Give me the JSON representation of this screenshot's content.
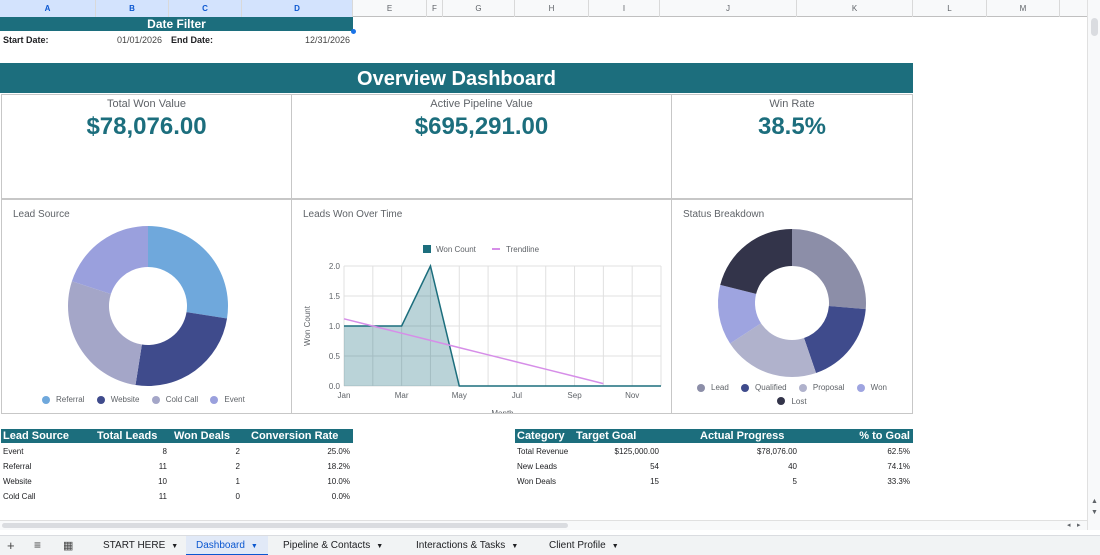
{
  "columns": [
    "A",
    "B",
    "C",
    "D",
    "E",
    "F",
    "G",
    "H",
    "I",
    "J",
    "K",
    "L",
    "M"
  ],
  "date_filter": {
    "title": "Date Filter",
    "start_label": "Start Date:",
    "start_value": "01/01/2026",
    "end_label": "End Date:",
    "end_value": "12/31/2026"
  },
  "dashboard_title": "Overview Dashboard",
  "kpis": {
    "won": {
      "label": "Total Won Value",
      "value": "$78,076.00"
    },
    "pipeline": {
      "label": "Active Pipeline Value",
      "value": "$695,291.00"
    },
    "winrate": {
      "label": "Win Rate",
      "value": "38.5%"
    }
  },
  "colors": {
    "teal": "#1c6e7d",
    "referral": "#6fa8dc",
    "website": "#3f4b8c",
    "cold_call": "#a4a6c8",
    "event": "#9aa0dd",
    "lead": "#8c8ea8",
    "qualified": "#3f4b8c",
    "proposal": "#b0b2cc",
    "status_won": "#9ea4e0",
    "lost": "#33344a",
    "won_count": "#1c6e7d",
    "trendline": "#d68ee8"
  },
  "chart_data": [
    {
      "type": "pie",
      "title": "Lead Source",
      "categories": [
        "Referral",
        "Website",
        "Cold Call",
        "Event"
      ],
      "values": [
        11,
        10,
        11,
        8
      ]
    },
    {
      "type": "area",
      "title": "Leads Won Over Time",
      "x": [
        "Jan",
        "Feb",
        "Mar",
        "Apr",
        "May",
        "Jun",
        "Jul",
        "Aug",
        "Sep",
        "Oct",
        "Nov",
        "Dec"
      ],
      "series": [
        {
          "name": "Won Count",
          "values": [
            1,
            1,
            1,
            2,
            0,
            0,
            0,
            0,
            0,
            0,
            0,
            0
          ]
        },
        {
          "name": "Trendline",
          "values": [
            1.12,
            1.0,
            0.88,
            0.76,
            0.64,
            0.52,
            0.4,
            0.28,
            0.16,
            0.04,
            null,
            null
          ]
        }
      ],
      "tick_labels_x": [
        "Jan",
        "Mar",
        "May",
        "Jul",
        "Sep",
        "Nov"
      ],
      "tick_labels_y": [
        "0.0",
        "0.5",
        "1.0",
        "1.5",
        "2.0"
      ],
      "xlabel": "Month",
      "ylabel": "Won Count",
      "ylim": [
        0,
        2
      ],
      "grid": true,
      "legend": "top"
    },
    {
      "type": "pie",
      "title": "Status Breakdown",
      "categories": [
        "Lead",
        "Qualified",
        "Proposal",
        "Won",
        "Lost"
      ],
      "values": [
        10,
        7,
        8,
        5,
        8
      ]
    }
  ],
  "lead_table": {
    "headers": [
      "Lead Source",
      "Total Leads",
      "Won Deals",
      "Conversion Rate"
    ],
    "rows": [
      [
        "Event",
        "8",
        "2",
        "25.0%"
      ],
      [
        "Referral",
        "11",
        "2",
        "18.2%"
      ],
      [
        "Website",
        "10",
        "1",
        "10.0%"
      ],
      [
        "Cold Call",
        "11",
        "0",
        "0.0%"
      ]
    ]
  },
  "goal_table": {
    "headers": [
      "Category",
      "Target Goal",
      "Actual Progress",
      "% to Goal"
    ],
    "rows": [
      [
        "Total Revenue",
        "$125,000.00",
        "$78,076.00",
        "62.5%"
      ],
      [
        "New Leads",
        "54",
        "40",
        "74.1%"
      ],
      [
        "Won Deals",
        "15",
        "5",
        "33.3%"
      ]
    ]
  },
  "tabs": [
    {
      "label": "START HERE",
      "active": false
    },
    {
      "label": "Dashboard",
      "active": true
    },
    {
      "label": "Pipeline & Contacts",
      "active": false
    },
    {
      "label": "Interactions & Tasks",
      "active": false
    },
    {
      "label": "Client Profile",
      "active": false
    }
  ]
}
